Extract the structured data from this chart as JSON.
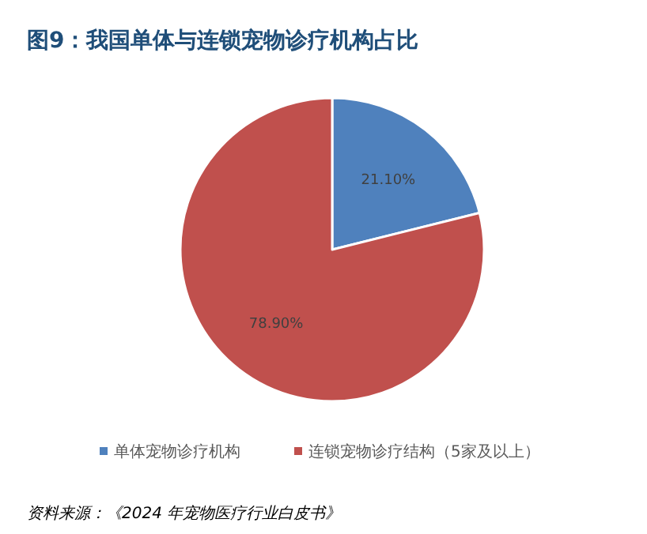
{
  "chart_data": {
    "type": "pie",
    "title": "图9：我国单体与连锁宠物诊疗机构占比",
    "categories": [
      "单体宠物诊疗机构",
      "连锁宠物诊疗结构（5家及以上）"
    ],
    "values": [
      21.1,
      78.9
    ],
    "value_labels": [
      "21.10%",
      "78.90%"
    ],
    "colors": [
      "#4f81bd",
      "#c0504d"
    ],
    "legend": "bottom",
    "annotations": [
      "资料来源：《2024 年宠物医疗行业白皮书》"
    ]
  }
}
